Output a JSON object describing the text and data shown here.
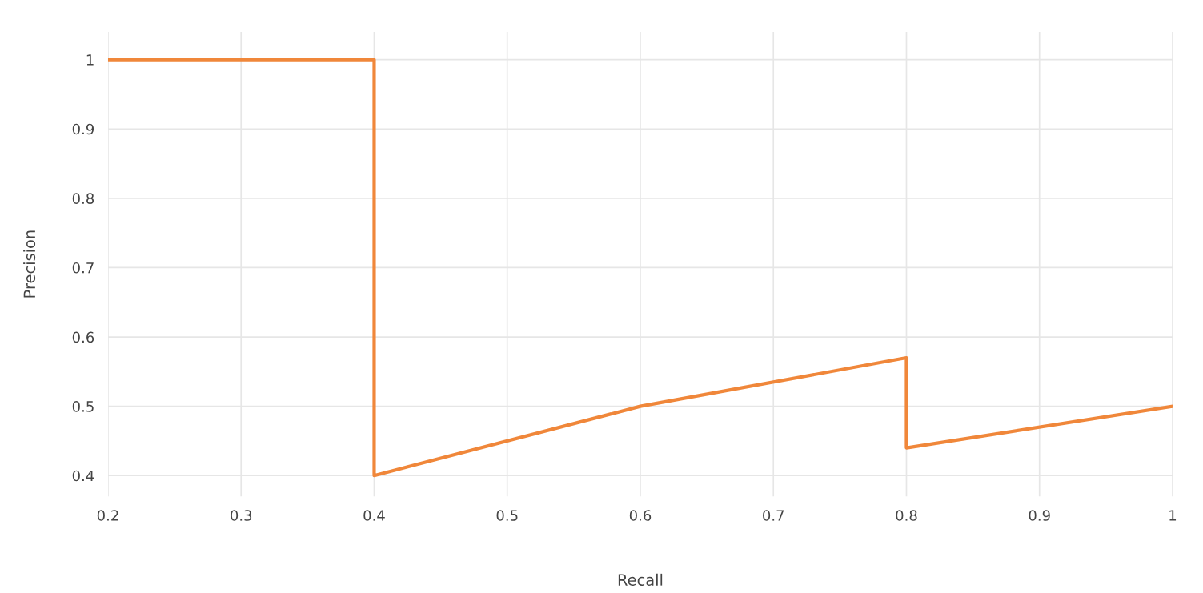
{
  "chart_data": {
    "type": "line",
    "xlabel": "Recall",
    "ylabel": "Precision",
    "series": [
      {
        "color": "#f0873a",
        "x": [
          0.2,
          0.4,
          0.4,
          0.6,
          0.8,
          0.8,
          1.0
        ],
        "values": [
          1.0,
          1.0,
          0.4,
          0.5,
          0.57,
          0.44,
          0.5
        ]
      }
    ],
    "xlim": [
      0.2,
      1.0
    ],
    "xticks": [
      0.2,
      0.3,
      0.4,
      0.5,
      0.6,
      0.7,
      0.8,
      0.9,
      {
        "value": 1.0,
        "label": "1"
      }
    ],
    "ylim": [
      0.37,
      1.04
    ],
    "yticks": [
      0.4,
      0.5,
      0.6,
      0.7,
      0.8,
      0.9,
      {
        "value": 1.0,
        "label": "1"
      }
    ],
    "grid": true,
    "marker": "none",
    "line_style": "solid"
  }
}
